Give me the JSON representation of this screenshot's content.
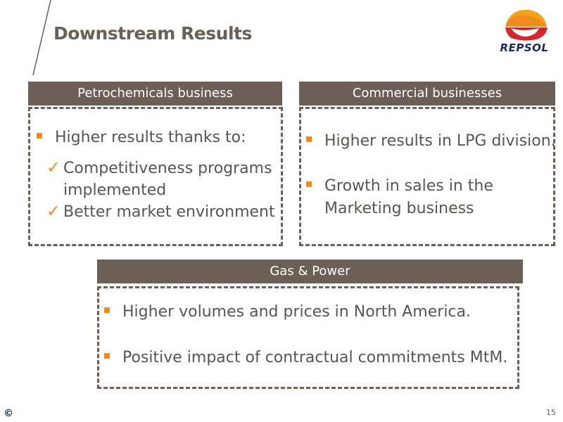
{
  "title": "Downstream Results",
  "logo": {
    "text": "REPSOL"
  },
  "petrochem": {
    "header": "Petrochemicals business",
    "bullet": "Higher results thanks to:",
    "checks": [
      "Competitiveness programs",
      "implemented",
      "Better market environment"
    ]
  },
  "commercial": {
    "header": "Commercial businesses",
    "bullets": [
      "Higher results in LPG division.",
      "Growth in sales in the",
      "Marketing business"
    ]
  },
  "gas": {
    "header": "Gas & Power",
    "bullets": [
      "Higher volumes and prices in North America.",
      "Positive impact of contractual commitments MtM."
    ]
  },
  "footer": {
    "copyright": "©",
    "page": "15"
  },
  "colors": {
    "header_bg": "#6b5f57",
    "bullet": "#f08c1e",
    "text": "#5a5450",
    "brand_blue": "#1a2a5e"
  }
}
